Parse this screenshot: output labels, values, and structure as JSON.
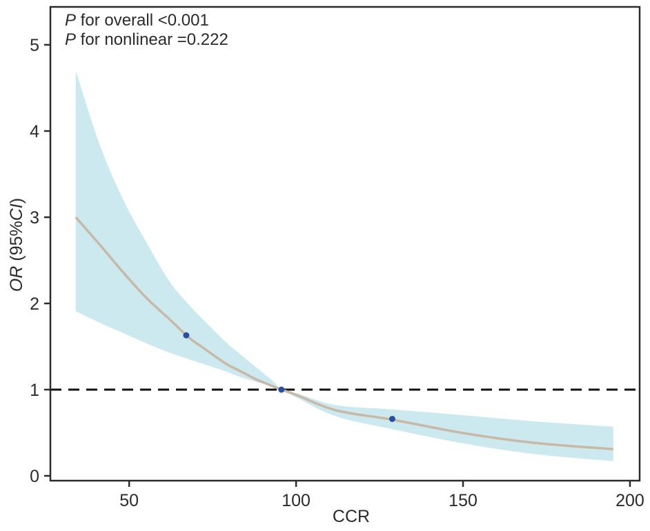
{
  "chart_data": {
    "type": "line",
    "xlabel": "CCR",
    "ylabel": {
      "parts": [
        {
          "text": "OR",
          "italic": true
        },
        {
          "text": " (95%",
          "italic": false
        },
        {
          "text": "CI",
          "italic": true
        },
        {
          "text": ")",
          "italic": false
        }
      ]
    },
    "xlim": [
      26.4,
      202.9
    ],
    "ylim": [
      -0.056,
      5.44
    ],
    "xticks": [
      50,
      100,
      150,
      200
    ],
    "yticks": [
      0,
      1,
      2,
      3,
      4,
      5
    ],
    "grid": false,
    "annotations": [
      {
        "italic": "P",
        "text": " for overall <0.001"
      },
      {
        "italic": "P",
        "text": " for nonlinear =0.222"
      }
    ],
    "reference_line": {
      "y": 1,
      "style": "dashed",
      "color": "#111111"
    },
    "x": [
      34,
      41,
      48,
      55,
      62,
      68,
      72,
      79,
      83,
      88,
      93,
      95.6,
      100,
      112,
      129,
      151,
      172,
      195
    ],
    "series": [
      {
        "role": "estimate",
        "color": "#c8b9a6",
        "values": [
          3.0,
          2.69,
          2.37,
          2.07,
          1.82,
          1.6,
          1.49,
          1.3,
          1.22,
          1.12,
          1.04,
          1.0,
          0.94,
          0.76,
          0.65,
          0.49,
          0.38,
          0.31
        ]
      },
      {
        "role": "ci_upper",
        "color": "#cbe9ee",
        "values": [
          4.7,
          3.86,
          3.22,
          2.72,
          2.26,
          1.98,
          1.82,
          1.55,
          1.42,
          1.26,
          1.1,
          1.0,
          0.96,
          0.82,
          0.77,
          0.7,
          0.63,
          0.57
        ]
      },
      {
        "role": "ci_lower",
        "color": "#cbe9ee",
        "values": [
          1.91,
          1.78,
          1.66,
          1.54,
          1.43,
          1.35,
          1.3,
          1.21,
          1.15,
          1.09,
          1.04,
          1.0,
          0.91,
          0.69,
          0.54,
          0.37,
          0.25,
          0.17
        ]
      }
    ],
    "points": {
      "color": "#2a4fa0",
      "x": [
        67.1,
        95.6,
        128.8
      ],
      "y": [
        1.63,
        1.0,
        0.66
      ]
    }
  }
}
